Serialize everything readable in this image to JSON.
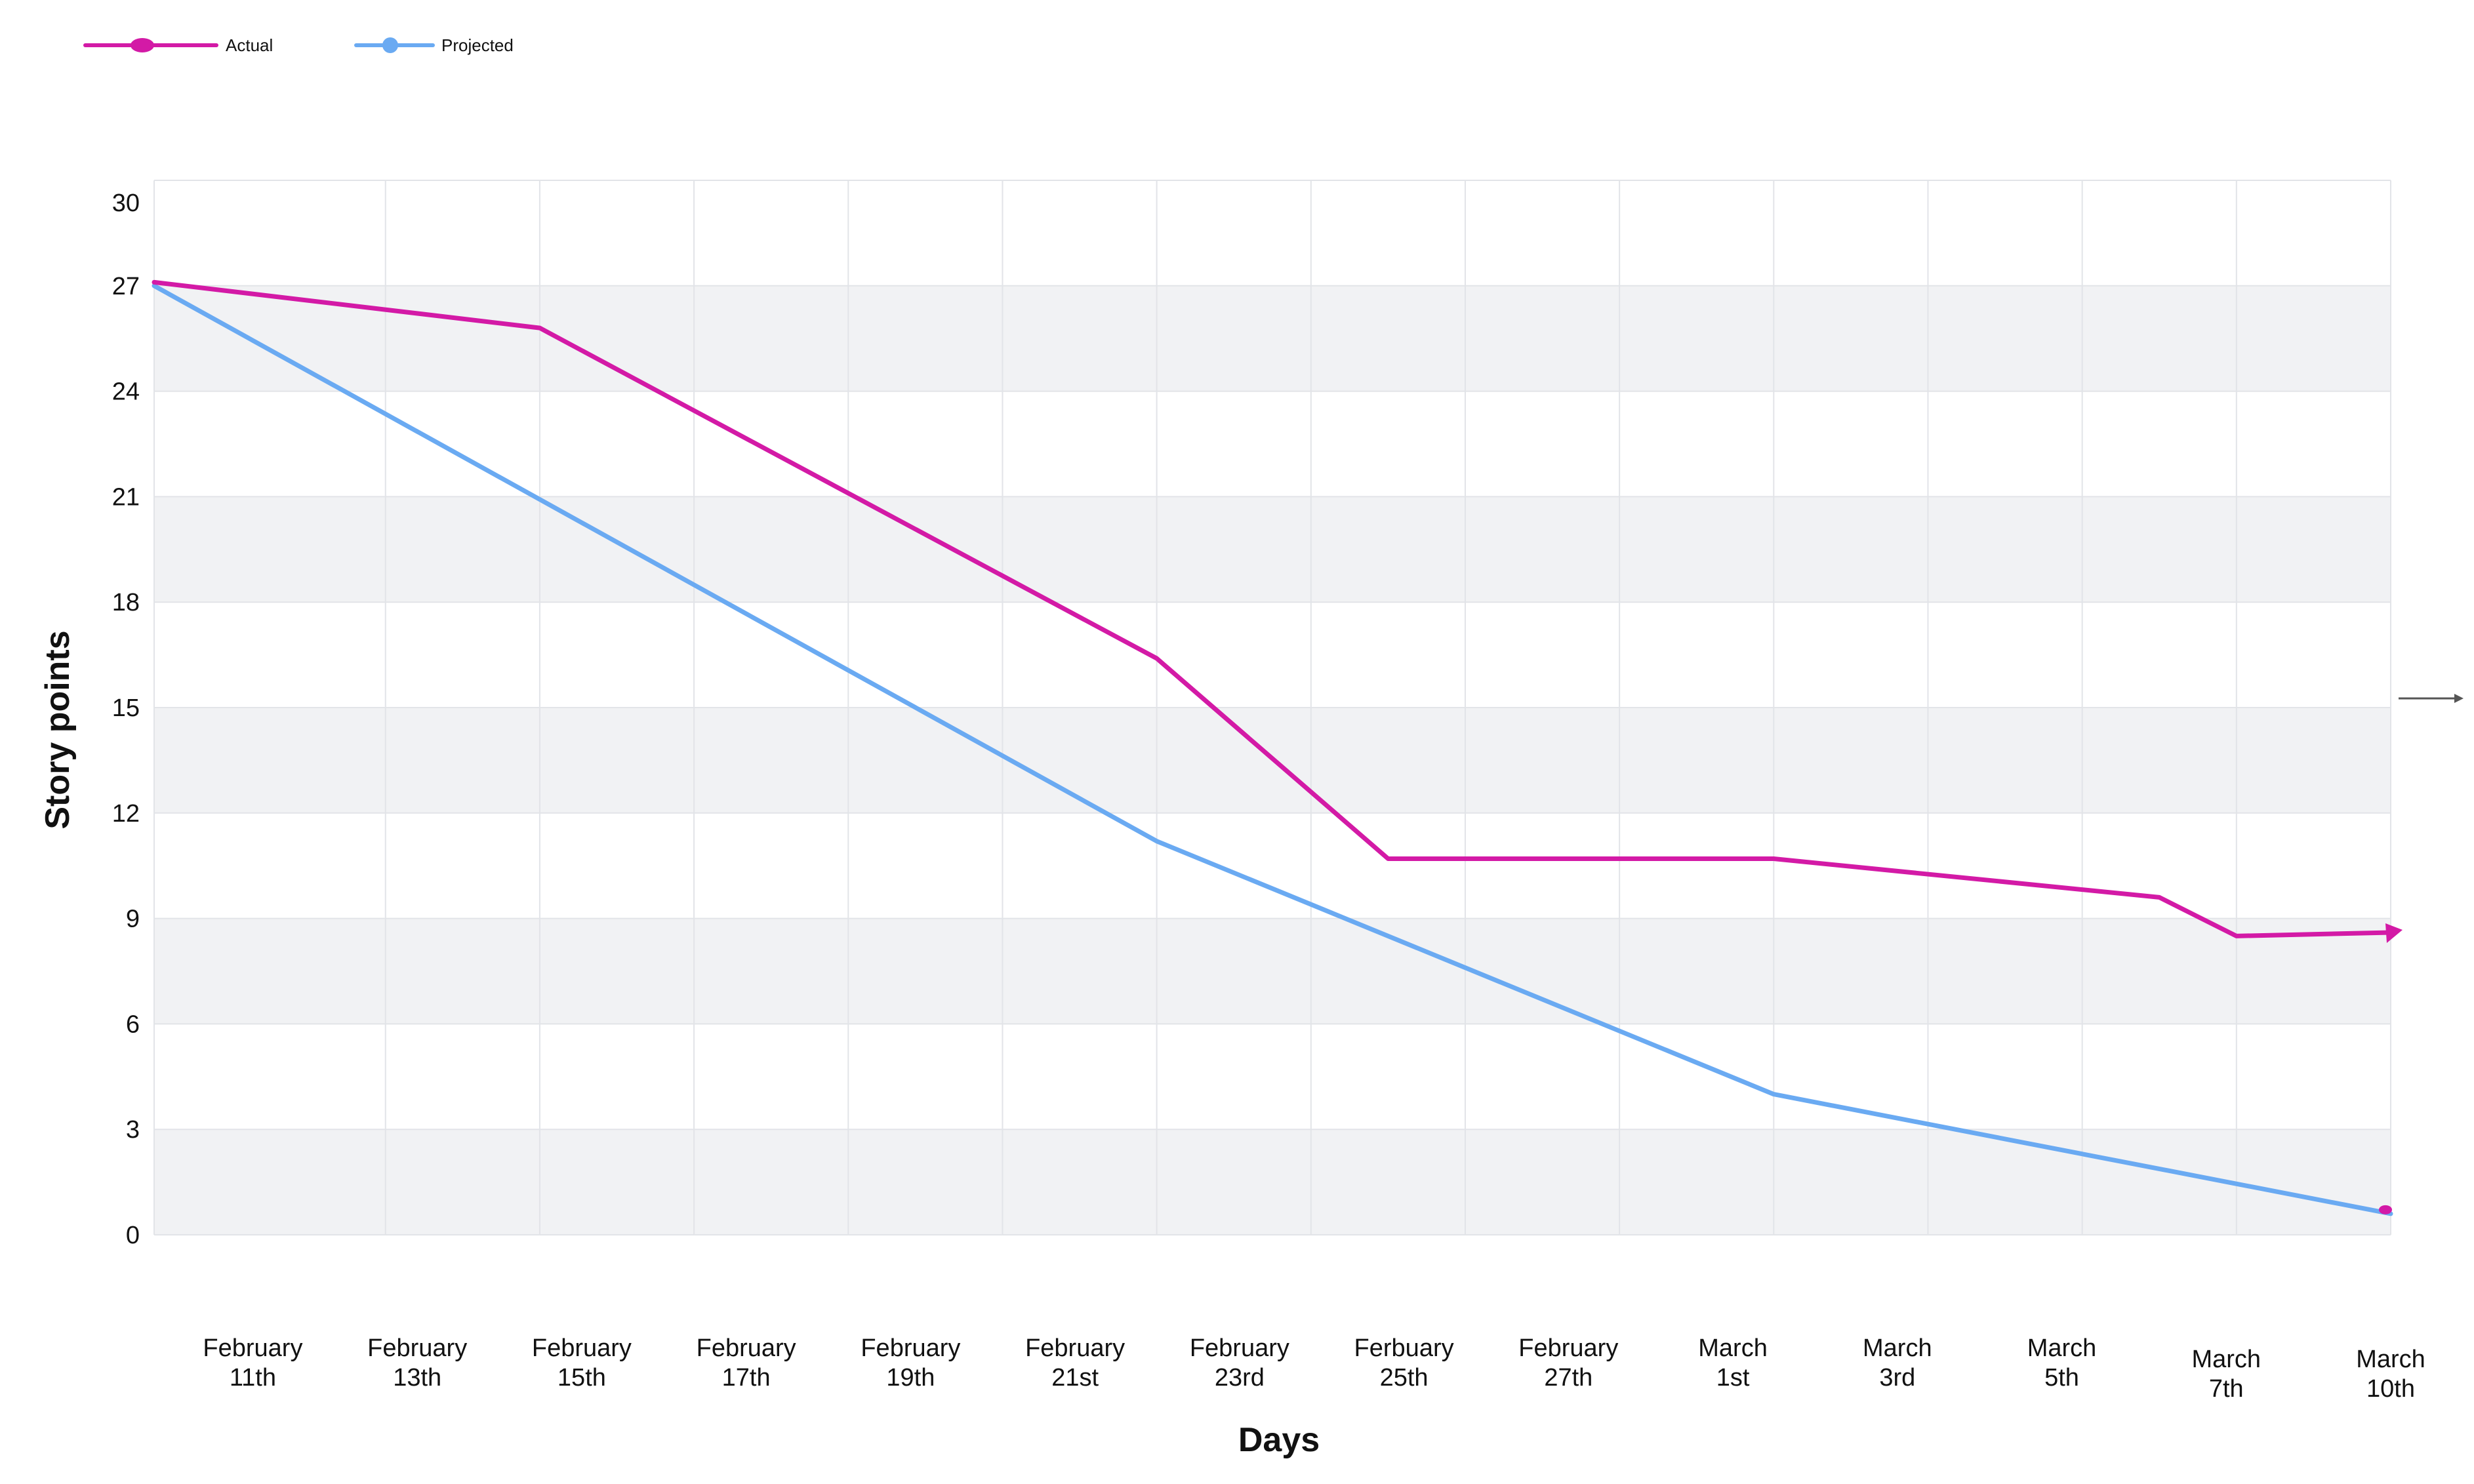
{
  "chart_data": {
    "type": "line",
    "xlabel": "Days",
    "ylabel": "Story points",
    "ylim": [
      0,
      30
    ],
    "yticks": [
      0,
      3,
      6,
      9,
      12,
      15,
      18,
      21,
      24,
      27,
      30
    ],
    "grid": true,
    "banded_background": true,
    "legend_position": "top-left",
    "categories": [
      [
        "February",
        "11th"
      ],
      [
        "February",
        "13th"
      ],
      [
        "February",
        "15th"
      ],
      [
        "February",
        "17th"
      ],
      [
        "February",
        "19th"
      ],
      [
        "February",
        "21st"
      ],
      [
        "February",
        "23rd"
      ],
      [
        "Ferbuary",
        "25th"
      ],
      [
        "February",
        "27th"
      ],
      [
        "March",
        "1st"
      ],
      [
        "March",
        "3rd"
      ],
      [
        "March",
        "5th"
      ],
      [
        "March",
        "7th"
      ],
      [
        "March",
        "10th"
      ]
    ],
    "series": [
      {
        "name": "Actual",
        "color": "#d31aa6",
        "points": [
          {
            "x": "February 10th",
            "y": 27.1
          },
          {
            "x": "February 15th",
            "y": 25.8
          },
          {
            "x": "February 23rd",
            "y": 16.4
          },
          {
            "x": "February 26th",
            "y": 10.7
          },
          {
            "x": "March 3rd",
            "y": 10.7
          },
          {
            "x": "March 8th",
            "y": 9.6
          },
          {
            "x": "March 9th",
            "y": 8.5
          },
          {
            "x": "March 11th",
            "y": 8.6
          }
        ]
      },
      {
        "name": "Projected",
        "color": "#6aaaf2",
        "points": [
          {
            "x": "February 10th",
            "y": 27.0
          },
          {
            "x": "February 23rd",
            "y": 11.2
          },
          {
            "x": "March 3rd",
            "y": 4.0
          },
          {
            "x": "March 11th",
            "y": 0.6
          }
        ]
      }
    ]
  }
}
